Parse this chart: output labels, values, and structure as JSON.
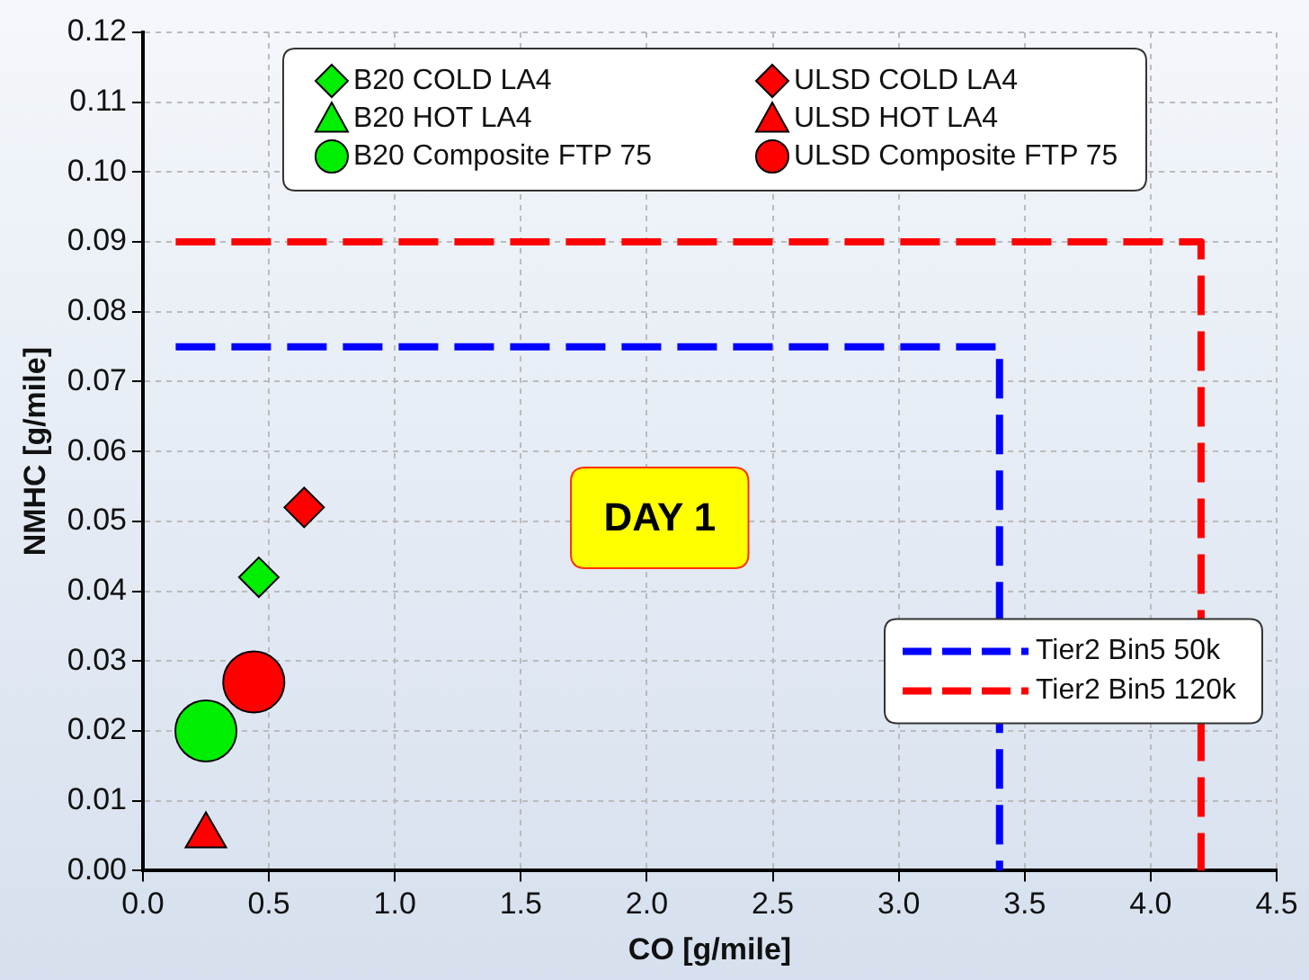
{
  "chart_data": {
    "type": "scatter",
    "xlabel": "CO [g/mile]",
    "ylabel": "NMHC [g/mile]",
    "xlim": [
      0,
      4.5
    ],
    "xticks": [
      {
        "value": 0,
        "label": "0.0"
      },
      0.5,
      {
        "value": 1,
        "label": "1.0"
      },
      1.5,
      {
        "value": 2,
        "label": "2.0"
      },
      2.5,
      {
        "value": 3,
        "label": "3.0"
      },
      3.5,
      {
        "value": 4,
        "label": "4.0"
      },
      4.5
    ],
    "ylim": [
      0,
      0.12
    ],
    "yticks": [
      {
        "value": 0,
        "label": "0.00"
      },
      0.01,
      0.02,
      0.03,
      0.04,
      0.05,
      0.06,
      0.07,
      0.08,
      0.09,
      {
        "value": 0.1,
        "label": "0.10"
      },
      0.11,
      0.12
    ],
    "grid": true,
    "legend": "top",
    "series": [
      {
        "name": "B20 COLD LA4",
        "color": "#00ee00",
        "marker": "diamond",
        "x": [
          0.46
        ],
        "values": [
          0.042
        ]
      },
      {
        "name": "B20 HOT LA4",
        "color": "#00ee00",
        "marker": "triangle",
        "x": [
          null
        ],
        "values": [
          null
        ]
      },
      {
        "name": "B20 Composite FTP 75",
        "color": "#00ee00",
        "marker": "circle",
        "x": [
          0.25
        ],
        "values": [
          0.02
        ]
      },
      {
        "name": "ULSD COLD LA4",
        "color": "#ff0000",
        "marker": "diamond",
        "x": [
          0.64
        ],
        "values": [
          0.052
        ]
      },
      {
        "name": "ULSD HOT LA4",
        "color": "#ff0000",
        "marker": "triangle",
        "x": [
          0.25
        ],
        "values": [
          0.005
        ]
      },
      {
        "name": "ULSD Composite FTP 75",
        "color": "#ff0000",
        "marker": "circle",
        "x": [
          0.44
        ],
        "values": [
          0.027
        ]
      },
      {
        "name": "Tier2 Bin5 50k",
        "type": "line",
        "color": "#0000ff",
        "line_style": "dashed",
        "marker": "none",
        "x": [
          0.13,
          3.4,
          3.4
        ],
        "values": [
          0.075,
          0.075,
          0
        ]
      },
      {
        "name": "Tier2 Bin5 120k",
        "type": "line",
        "color": "#ff0000",
        "line_style": "dashed",
        "marker": "none",
        "x": [
          0.13,
          4.2,
          4.2
        ],
        "values": [
          0.09,
          0.09,
          0
        ]
      }
    ],
    "annotations": [
      "DAY 1"
    ]
  }
}
